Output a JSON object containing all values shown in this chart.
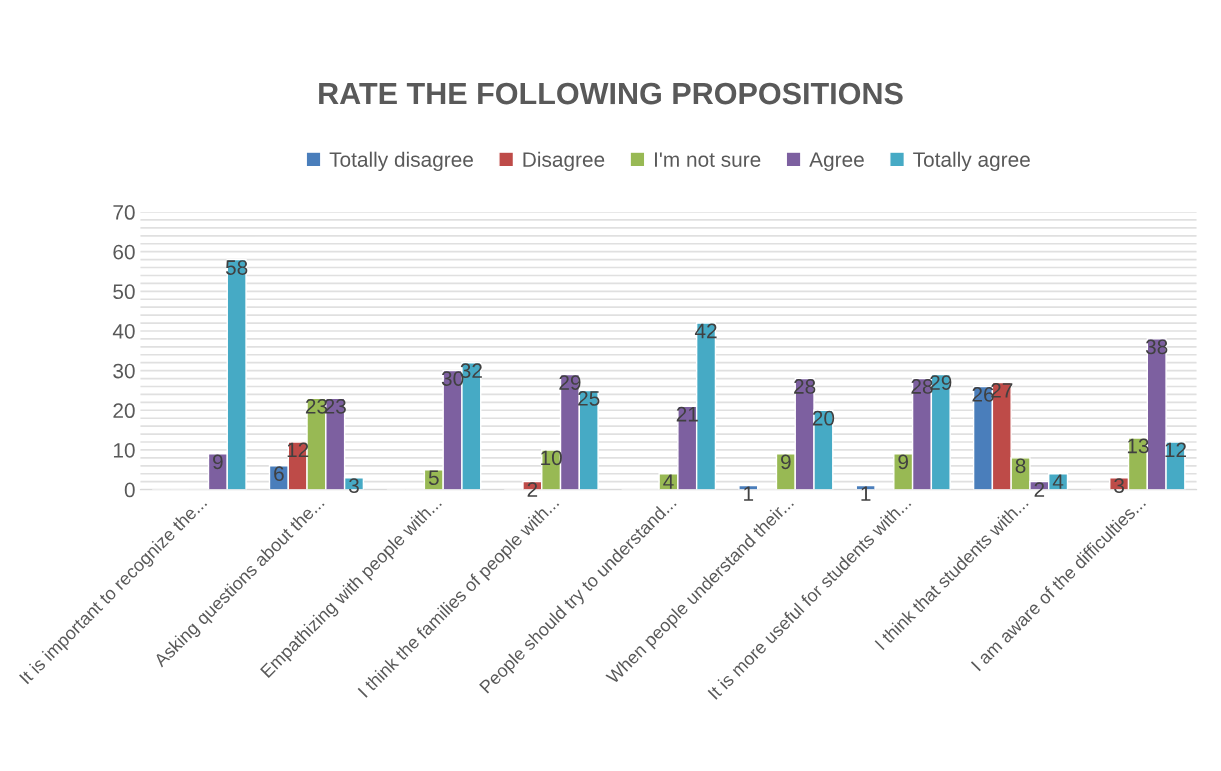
{
  "chart_data": {
    "type": "bar",
    "title": "RATE THE FOLLOWING PROPOSITIONS",
    "categories": [
      "It is important to recognize the...",
      "Asking questions about the...",
      "Empathizing with people with...",
      "I think the families of people with...",
      "People should try to understand...",
      "When people understand their...",
      "It is more useful for students with...",
      "I think that students with...",
      "I am aware of the difficulties..."
    ],
    "series": [
      {
        "name": "Totally disagree",
        "color": "#4a7ebb",
        "values": [
          null,
          6,
          null,
          null,
          null,
          1,
          1,
          26,
          null
        ]
      },
      {
        "name": "Disagree",
        "color": "#be4b48",
        "values": [
          null,
          12,
          null,
          2,
          null,
          null,
          null,
          27,
          3
        ]
      },
      {
        "name": "I'm not sure",
        "color": "#98b954",
        "values": [
          null,
          23,
          5,
          10,
          4,
          9,
          9,
          8,
          13
        ]
      },
      {
        "name": "Agree",
        "color": "#7d60a0",
        "values": [
          9,
          23,
          30,
          29,
          21,
          28,
          28,
          2,
          38
        ]
      },
      {
        "name": "Totally agree",
        "color": "#46aac5",
        "values": [
          58,
          3,
          32,
          25,
          42,
          20,
          29,
          4,
          12
        ]
      }
    ],
    "ylim": [
      0,
      70
    ],
    "yticks": [
      0,
      {
        "value": 2,
        "label": null
      },
      {
        "value": 4,
        "label": null
      },
      {
        "value": 6,
        "label": null
      },
      {
        "value": 8,
        "label": null
      },
      10,
      {
        "value": 12,
        "label": null
      },
      {
        "value": 14,
        "label": null
      },
      {
        "value": 16,
        "label": null
      },
      {
        "value": 18,
        "label": null
      },
      20,
      {
        "value": 22,
        "label": null
      },
      {
        "value": 24,
        "label": null
      },
      {
        "value": 26,
        "label": null
      },
      {
        "value": 28,
        "label": null
      },
      30,
      {
        "value": 32,
        "label": null
      },
      {
        "value": 34,
        "label": null
      },
      {
        "value": 36,
        "label": null
      },
      {
        "value": 38,
        "label": null
      },
      40,
      {
        "value": 42,
        "label": null
      },
      {
        "value": 44,
        "label": null
      },
      {
        "value": 46,
        "label": null
      },
      {
        "value": 48,
        "label": null
      },
      50,
      {
        "value": 52,
        "label": null
      },
      {
        "value": 54,
        "label": null
      },
      {
        "value": 56,
        "label": null
      },
      {
        "value": 58,
        "label": null
      },
      60,
      {
        "value": 62,
        "label": null
      },
      {
        "value": 64,
        "label": null
      },
      {
        "value": 66,
        "label": null
      },
      {
        "value": 68,
        "label": null
      },
      70
    ],
    "grid": "y",
    "legend": "top",
    "data_labels": true
  }
}
